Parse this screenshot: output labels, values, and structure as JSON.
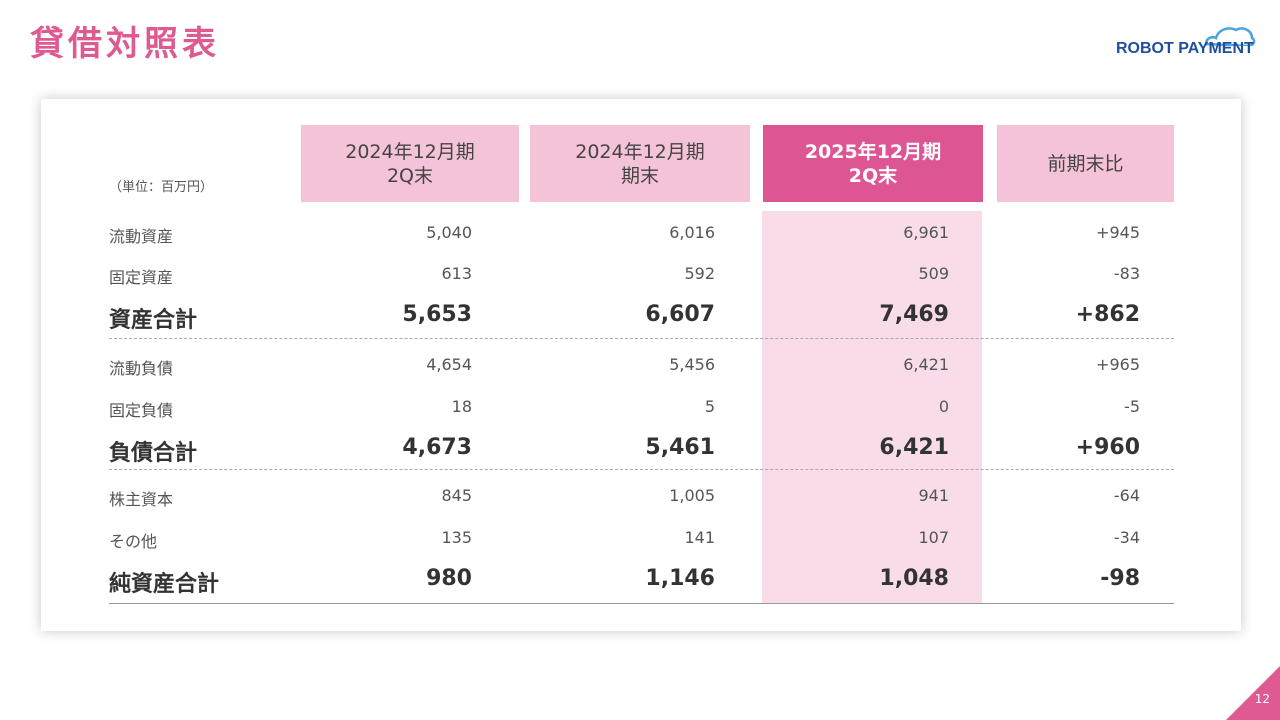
{
  "title": "貸借対照表",
  "logo": {
    "text": "ROBOT PAYMENT",
    "color": "#1f4e9c"
  },
  "unit_label": "（単位：百万円）",
  "headers": [
    {
      "line1": "2024年12月期",
      "line2": "2Q末"
    },
    {
      "line1": "2024年12月期",
      "line2": "期末"
    },
    {
      "line1": "2025年12月期",
      "line2": "2Q末"
    },
    {
      "line1": "前期末比",
      "line2": ""
    }
  ],
  "rows": [
    {
      "label": "流動資産",
      "values": [
        "5,040",
        "6,016",
        "6,961",
        "+945"
      ]
    },
    {
      "label": "固定資産",
      "values": [
        "613",
        "592",
        "509",
        "-83"
      ]
    },
    {
      "label": "資産合計",
      "values": [
        "5,653",
        "6,607",
        "7,469",
        "+862"
      ]
    },
    {
      "label": "流動負債",
      "values": [
        "4,654",
        "5,456",
        "6,421",
        "+965"
      ]
    },
    {
      "label": "固定負債",
      "values": [
        "18",
        "5",
        "0",
        "-5"
      ]
    },
    {
      "label": "負債合計",
      "values": [
        "4,673",
        "5,461",
        "6,421",
        "+960"
      ]
    },
    {
      "label": "株主資本",
      "values": [
        "845",
        "1,005",
        "941",
        "-64"
      ]
    },
    {
      "label": "その他",
      "values": [
        "135",
        "141",
        "107",
        "-34"
      ]
    },
    {
      "label": "純資産合計",
      "values": [
        "980",
        "1,146",
        "1,048",
        "-98"
      ]
    }
  ],
  "colors": {
    "accent": "#e05a92",
    "header_light": "#f4c3d9",
    "header_dark": "#dd5592",
    "highlight": "#f9dce9"
  },
  "page_number": "12"
}
